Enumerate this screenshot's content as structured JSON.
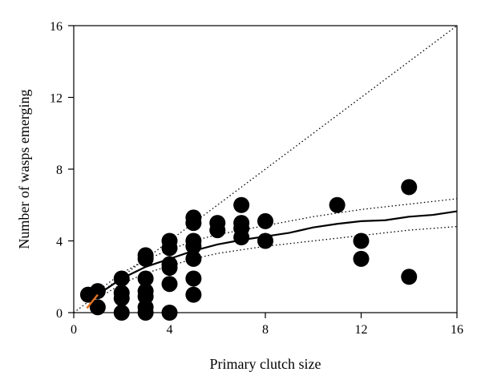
{
  "chart_data": {
    "type": "scatter",
    "title": "",
    "xlabel": "Primary clutch size",
    "ylabel": "Number of wasps emerging",
    "xlim": [
      0,
      16
    ],
    "ylim": [
      0,
      16
    ],
    "x_ticks": [
      0,
      4,
      8,
      12,
      16
    ],
    "y_ticks": [
      0,
      4,
      8,
      12,
      16
    ],
    "x_tick_labels": [
      "0",
      "4",
      "8",
      "12",
      "16"
    ],
    "y_tick_labels": [
      "0",
      "4",
      "8",
      "12",
      "16"
    ],
    "grid": false,
    "legend": "none",
    "series": [
      {
        "kind": "points",
        "color": "#000000",
        "points": [
          [
            0.6,
            1.0
          ],
          [
            1.0,
            1.2
          ],
          [
            1.0,
            0.3
          ],
          [
            2.0,
            1.9
          ],
          [
            2.0,
            1.1
          ],
          [
            2.0,
            0.8
          ],
          [
            2.0,
            0.0
          ],
          [
            3.0,
            3.2
          ],
          [
            3.0,
            3.0
          ],
          [
            3.0,
            1.9
          ],
          [
            3.0,
            1.2
          ],
          [
            3.0,
            0.9
          ],
          [
            3.0,
            0.3
          ],
          [
            3.0,
            0.0
          ],
          [
            4.0,
            4.0
          ],
          [
            4.0,
            3.6
          ],
          [
            4.0,
            2.7
          ],
          [
            4.0,
            2.5
          ],
          [
            4.0,
            1.6
          ],
          [
            4.0,
            0.0
          ],
          [
            5.0,
            5.3
          ],
          [
            5.0,
            5.0
          ],
          [
            5.0,
            4.0
          ],
          [
            5.0,
            3.7
          ],
          [
            5.0,
            3.0
          ],
          [
            5.0,
            1.9
          ],
          [
            5.0,
            1.0
          ],
          [
            6.0,
            5.0
          ],
          [
            6.0,
            4.6
          ],
          [
            7.0,
            6.0
          ],
          [
            7.0,
            5.0
          ],
          [
            7.0,
            4.7
          ],
          [
            7.0,
            4.2
          ],
          [
            8.0,
            5.1
          ],
          [
            8.0,
            4.0
          ],
          [
            11.0,
            6.0
          ],
          [
            12.0,
            4.0
          ],
          [
            12.0,
            3.0
          ],
          [
            14.0,
            7.0
          ],
          [
            14.0,
            2.0
          ]
        ]
      },
      {
        "kind": "fitted-line",
        "color": "#000000",
        "points": [
          [
            1,
            1.0
          ],
          [
            2,
            1.9
          ],
          [
            3,
            2.55
          ],
          [
            4,
            3.0
          ],
          [
            5,
            3.45
          ],
          [
            6,
            3.8
          ],
          [
            7,
            4.05
          ],
          [
            8,
            4.25
          ],
          [
            9,
            4.45
          ],
          [
            10,
            4.75
          ],
          [
            11,
            4.95
          ],
          [
            12,
            5.1
          ],
          [
            13,
            5.15
          ],
          [
            14,
            5.35
          ],
          [
            15,
            5.45
          ],
          [
            16,
            5.65
          ]
        ]
      },
      {
        "kind": "upper-bound",
        "color": "#000000",
        "points": [
          [
            1,
            1.2
          ],
          [
            2,
            2.2
          ],
          [
            3,
            2.95
          ],
          [
            4,
            3.5
          ],
          [
            5,
            4.0
          ],
          [
            6,
            4.35
          ],
          [
            7,
            4.6
          ],
          [
            8,
            4.85
          ],
          [
            9,
            5.1
          ],
          [
            10,
            5.35
          ],
          [
            11,
            5.55
          ],
          [
            12,
            5.75
          ],
          [
            13,
            5.9
          ],
          [
            14,
            6.05
          ],
          [
            15,
            6.2
          ],
          [
            16,
            6.35
          ]
        ]
      },
      {
        "kind": "lower-bound",
        "color": "#000000",
        "points": [
          [
            1,
            0.8
          ],
          [
            2,
            1.6
          ],
          [
            3,
            2.2
          ],
          [
            4,
            2.6
          ],
          [
            5,
            3.0
          ],
          [
            6,
            3.3
          ],
          [
            7,
            3.5
          ],
          [
            8,
            3.7
          ],
          [
            9,
            3.85
          ],
          [
            10,
            4.0
          ],
          [
            11,
            4.15
          ],
          [
            12,
            4.3
          ],
          [
            13,
            4.45
          ],
          [
            14,
            4.6
          ],
          [
            15,
            4.7
          ],
          [
            16,
            4.8
          ]
        ]
      },
      {
        "kind": "identity-line",
        "color": "#000000",
        "points": [
          [
            0,
            0
          ],
          [
            16,
            16
          ]
        ]
      },
      {
        "kind": "short-segment",
        "color": "#e07020",
        "points": [
          [
            0.55,
            0.25
          ],
          [
            1.0,
            1.0
          ]
        ]
      }
    ]
  }
}
